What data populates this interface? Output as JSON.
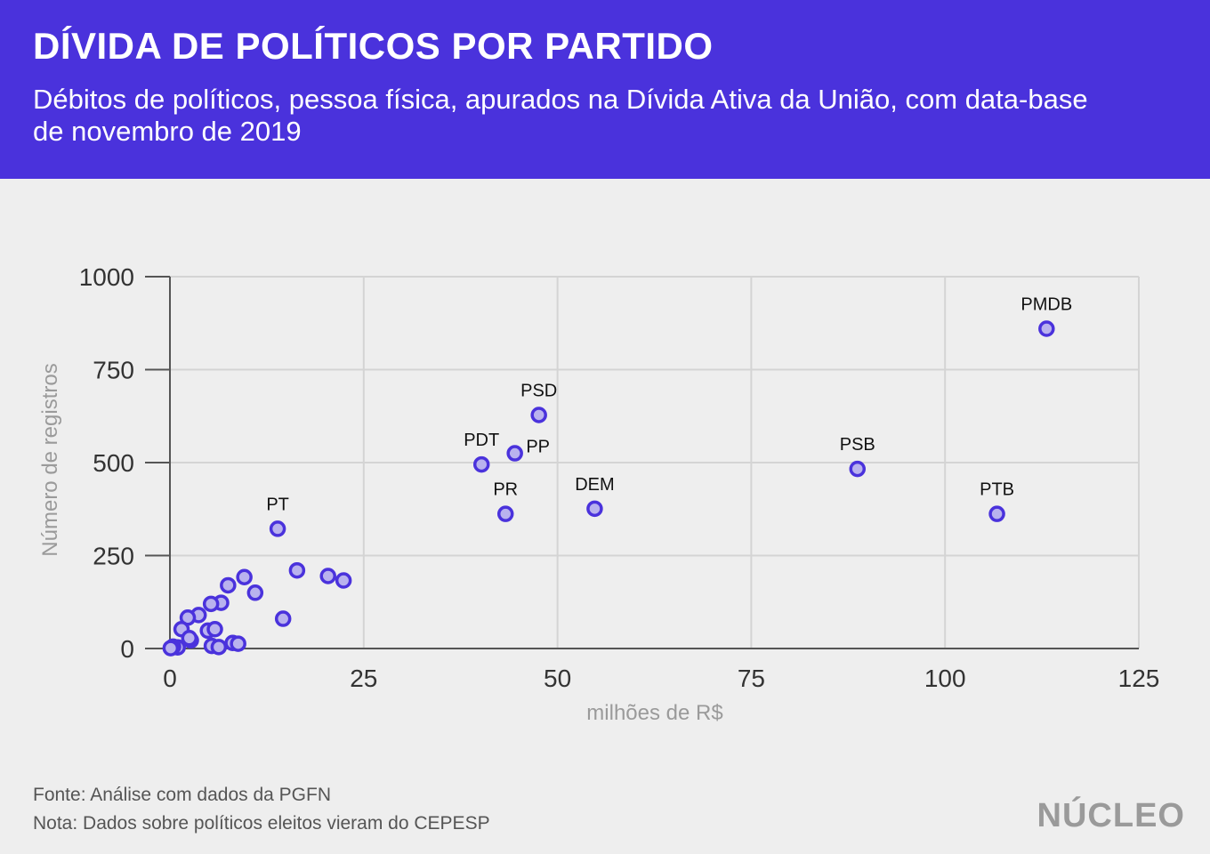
{
  "header": {
    "title": "DÍVIDA DE POLÍTICOS POR PARTIDO",
    "subtitle": "Débitos de políticos, pessoa física, apurados na Dívida Ativa da União, com data-base de novembro de 2019"
  },
  "footer": {
    "source": "Fonte: Análise com dados da PGFN",
    "note": "Nota: Dados sobre políticos eleitos vieram do CEPESP",
    "logo": "NÚCLEO"
  },
  "colors": {
    "header_bg": "#4a32dc",
    "point_stroke": "#4a32dc",
    "point_fill": "#b9b2ee",
    "grid": "#d4d4d4",
    "background": "#eeeeee"
  },
  "chart_data": {
    "type": "scatter",
    "xlabel": "milhões de R$",
    "ylabel": "Número de registros",
    "xlim": [
      0,
      125
    ],
    "ylim": [
      0,
      1000
    ],
    "xticks": [
      0,
      25,
      50,
      75,
      100,
      125
    ],
    "yticks": [
      0,
      250,
      500,
      750,
      1000
    ],
    "grid": true,
    "points": [
      {
        "x": 113.1,
        "y": 860,
        "label": "PMDB"
      },
      {
        "x": 47.6,
        "y": 628,
        "label": "PSD"
      },
      {
        "x": 44.5,
        "y": 525,
        "label": "PP"
      },
      {
        "x": 40.2,
        "y": 495,
        "label": "PDT"
      },
      {
        "x": 43.3,
        "y": 362,
        "label": "PR"
      },
      {
        "x": 54.8,
        "y": 376,
        "label": "DEM"
      },
      {
        "x": 88.7,
        "y": 483,
        "label": "PSB"
      },
      {
        "x": 106.7,
        "y": 362,
        "label": "PTB"
      },
      {
        "x": 13.9,
        "y": 322,
        "label": "PT"
      },
      {
        "x": 16.4,
        "y": 210,
        "label": ""
      },
      {
        "x": 20.4,
        "y": 195,
        "label": ""
      },
      {
        "x": 22.4,
        "y": 183,
        "label": ""
      },
      {
        "x": 9.6,
        "y": 192,
        "label": ""
      },
      {
        "x": 11.0,
        "y": 150,
        "label": ""
      },
      {
        "x": 7.5,
        "y": 170,
        "label": ""
      },
      {
        "x": 14.6,
        "y": 80,
        "label": ""
      },
      {
        "x": 6.6,
        "y": 123,
        "label": ""
      },
      {
        "x": 5.3,
        "y": 120,
        "label": ""
      },
      {
        "x": 3.7,
        "y": 90,
        "label": ""
      },
      {
        "x": 2.3,
        "y": 83,
        "label": ""
      },
      {
        "x": 1.5,
        "y": 52,
        "label": ""
      },
      {
        "x": 4.9,
        "y": 48,
        "label": ""
      },
      {
        "x": 5.8,
        "y": 52,
        "label": ""
      },
      {
        "x": 2.7,
        "y": 22,
        "label": ""
      },
      {
        "x": 2.5,
        "y": 28,
        "label": ""
      },
      {
        "x": 8.1,
        "y": 15,
        "label": ""
      },
      {
        "x": 8.8,
        "y": 13,
        "label": ""
      },
      {
        "x": 5.4,
        "y": 7,
        "label": ""
      },
      {
        "x": 6.3,
        "y": 4,
        "label": ""
      },
      {
        "x": 1.0,
        "y": 3,
        "label": ""
      },
      {
        "x": 0.4,
        "y": 5,
        "label": ""
      },
      {
        "x": 0.1,
        "y": 1,
        "label": ""
      }
    ]
  }
}
